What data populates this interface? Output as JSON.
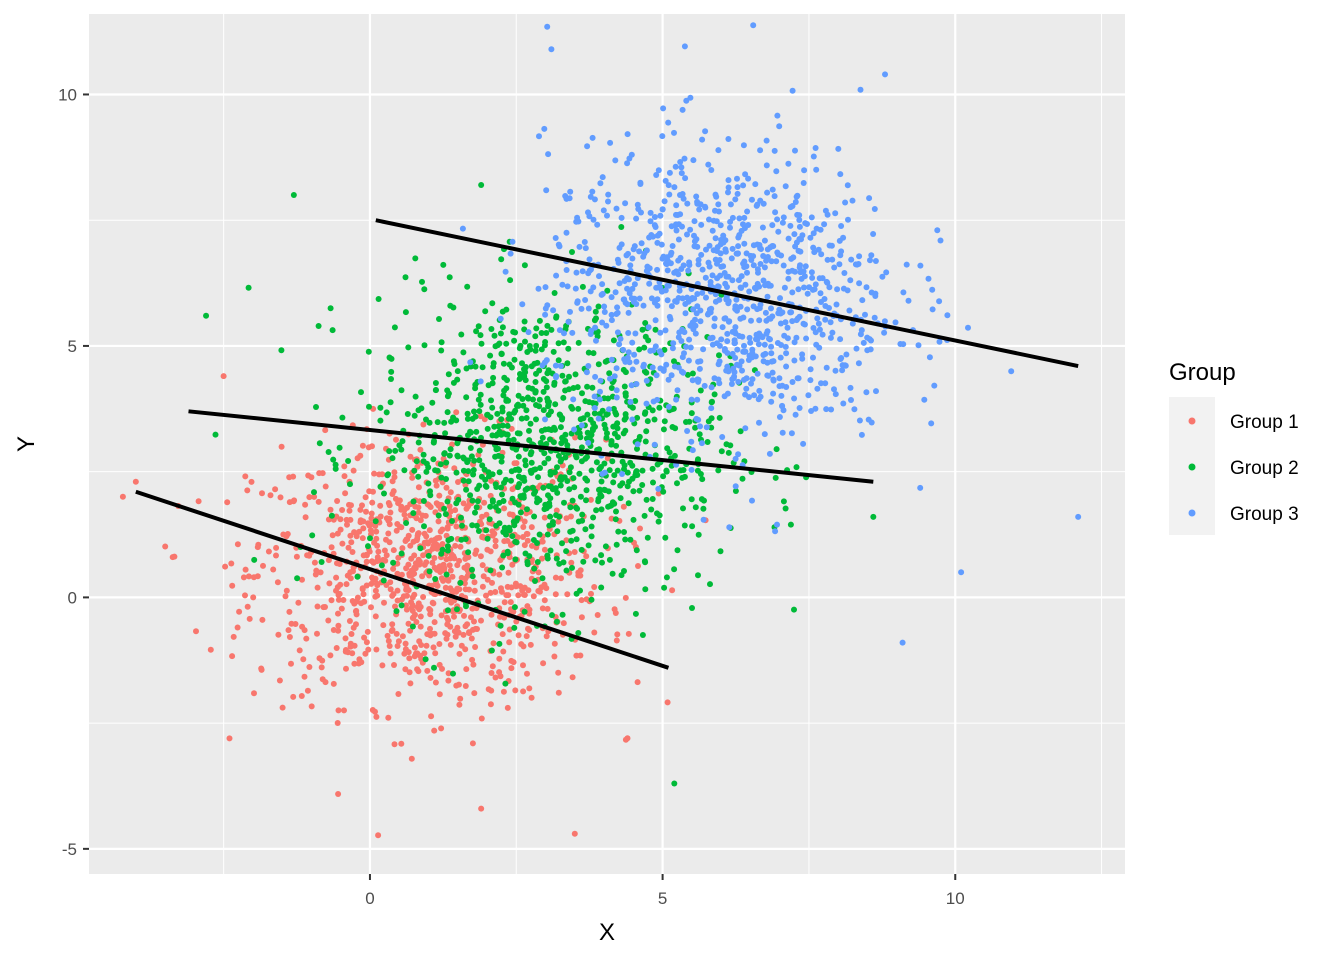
{
  "chart_data": {
    "type": "scatter",
    "xlabel": "X",
    "ylabel": "Y",
    "xlim": [
      -4.8,
      12.9
    ],
    "ylim": [
      -5.5,
      11.6
    ],
    "x_ticks": [
      0,
      5,
      10
    ],
    "y_ticks": [
      -5,
      0,
      5,
      10
    ],
    "x_tick_labels": [
      "0",
      "5",
      "10"
    ],
    "y_tick_labels": [
      "-5",
      "0",
      "5",
      "10"
    ],
    "grid": true,
    "legend": {
      "title": "Group",
      "position": "right"
    },
    "series": [
      {
        "name": "Group 1",
        "color": "#F8766D",
        "center": [
          1.0,
          0.5
        ],
        "spread": [
          1.5,
          1.3
        ],
        "n": 1000,
        "outliers": [
          [
            -4.0,
            2.3
          ],
          [
            3.5,
            -4.7
          ],
          [
            1.9,
            -4.2
          ],
          [
            -2.5,
            4.4
          ],
          [
            4.4,
            -2.8
          ]
        ],
        "fit": {
          "x": [
            -4.0,
            5.1
          ],
          "y": [
            2.1,
            -1.4
          ]
        }
      },
      {
        "name": "Group 2",
        "color": "#00BA38",
        "center": [
          3.0,
          3.0
        ],
        "spread": [
          1.5,
          1.5
        ],
        "n": 1000,
        "outliers": [
          [
            -1.3,
            8.0
          ],
          [
            -2.8,
            5.6
          ],
          [
            5.2,
            -3.7
          ],
          [
            8.6,
            1.6
          ],
          [
            1.9,
            8.2
          ]
        ],
        "fit": {
          "x": [
            -3.1,
            8.6
          ],
          "y": [
            3.7,
            2.3
          ]
        }
      },
      {
        "name": "Group 3",
        "color": "#619CFF",
        "center": [
          6.0,
          6.0
        ],
        "spread": [
          1.5,
          1.5
        ],
        "n": 1000,
        "outliers": [
          [
            12.1,
            1.6
          ],
          [
            9.1,
            -0.9
          ],
          [
            3.1,
            10.9
          ],
          [
            8.8,
            10.4
          ],
          [
            10.1,
            0.5
          ]
        ],
        "fit": {
          "x": [
            0.1,
            12.1
          ],
          "y": [
            7.5,
            4.6
          ]
        }
      }
    ]
  }
}
